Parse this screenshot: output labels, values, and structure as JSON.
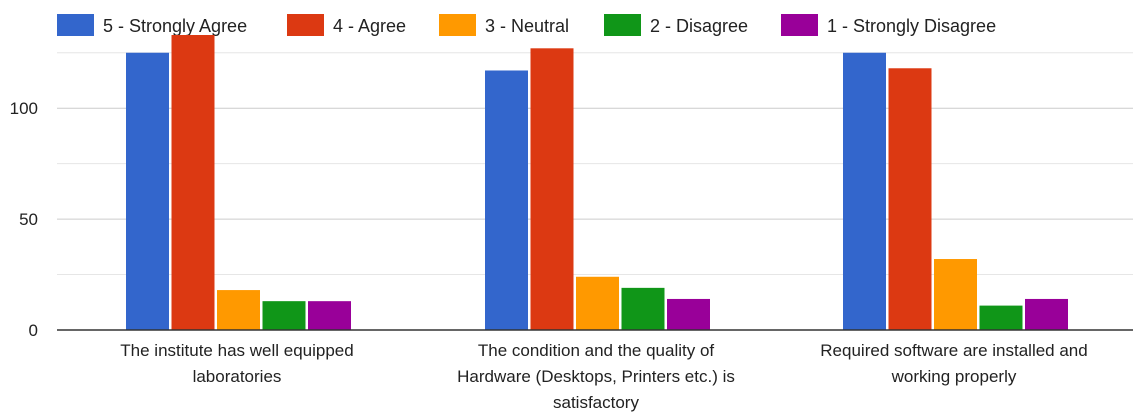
{
  "chart_data": {
    "type": "bar",
    "title": "",
    "xlabel": "",
    "ylabel": "",
    "ylim": [
      0,
      133
    ],
    "yticks": [
      0,
      50,
      100
    ],
    "grid": true,
    "legend_position": "top",
    "categories": [
      [
        "The institute has well equipped",
        "laboratories"
      ],
      [
        "The condition and the quality of",
        "Hardware (Desktops, Printers etc.) is",
        "satisfactory"
      ],
      [
        "Required software are installed and",
        "working properly"
      ]
    ],
    "series": [
      {
        "name": "5 - Strongly Agree",
        "color": "#3366cc",
        "values": [
          125,
          117,
          125
        ]
      },
      {
        "name": "4 - Agree",
        "color": "#dc3912",
        "values": [
          133,
          127,
          118
        ]
      },
      {
        "name": "3 - Neutral",
        "color": "#ff9900",
        "values": [
          18,
          24,
          32
        ]
      },
      {
        "name": "2 - Disagree",
        "color": "#109618",
        "values": [
          13,
          19,
          11
        ]
      },
      {
        "name": "1 - Strongly Disagree",
        "color": "#990099",
        "values": [
          13,
          14,
          14
        ]
      }
    ]
  }
}
